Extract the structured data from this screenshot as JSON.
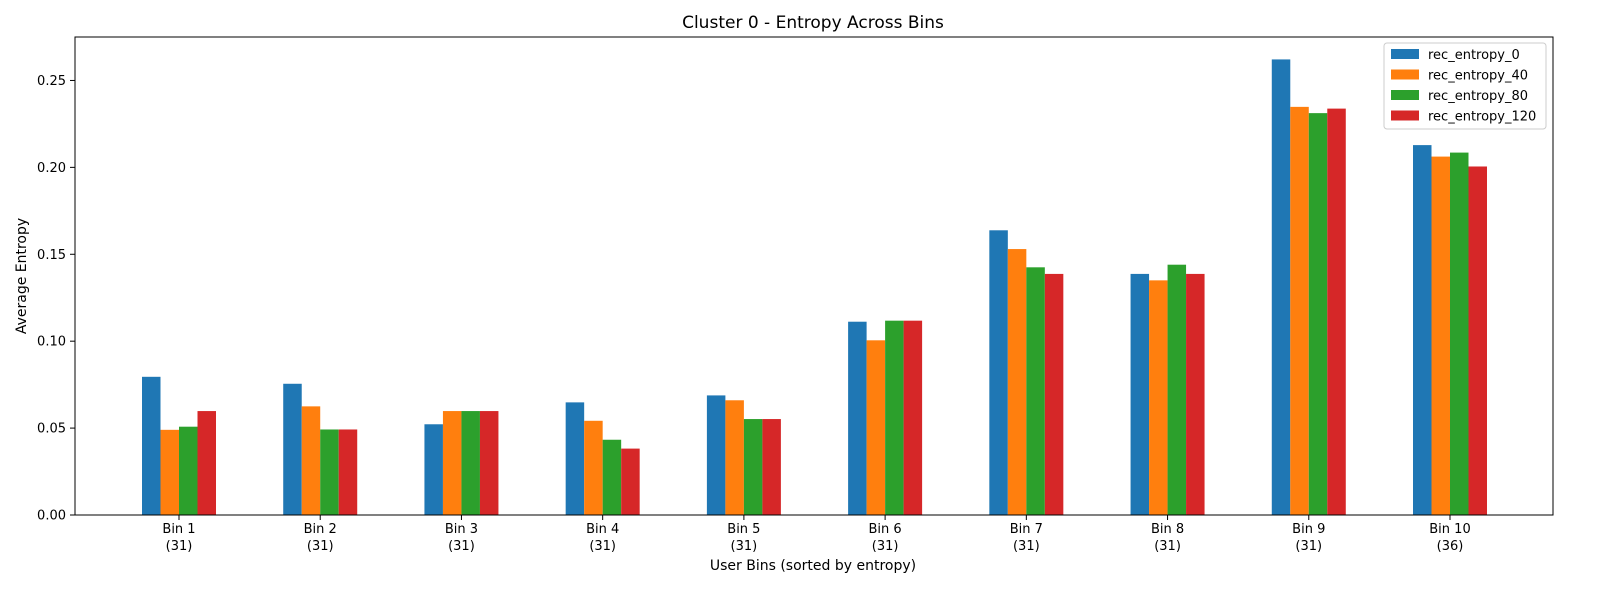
{
  "chart_data": {
    "type": "bar",
    "title": "Cluster 0 - Entropy Across Bins",
    "xlabel": "User Bins (sorted by entropy)",
    "ylabel": "Average Entropy",
    "ylim": [
      0,
      0.275
    ],
    "yticks": [
      "0.00",
      "0.05",
      "0.10",
      "0.15",
      "0.20",
      "0.25"
    ],
    "categories": [
      {
        "name": "Bin 1",
        "count": "(31)"
      },
      {
        "name": "Bin 2",
        "count": "(31)"
      },
      {
        "name": "Bin 3",
        "count": "(31)"
      },
      {
        "name": "Bin 4",
        "count": "(31)"
      },
      {
        "name": "Bin 5",
        "count": "(31)"
      },
      {
        "name": "Bin 6",
        "count": "(31)"
      },
      {
        "name": "Bin 7",
        "count": "(31)"
      },
      {
        "name": "Bin 8",
        "count": "(31)"
      },
      {
        "name": "Bin 9",
        "count": "(31)"
      },
      {
        "name": "Bin 10",
        "count": "(36)"
      }
    ],
    "series": [
      {
        "name": "rec_entropy_0",
        "color": "#1f77b4",
        "values": [
          0.0795,
          0.0755,
          0.0522,
          0.0648,
          0.0688,
          0.1112,
          0.1638,
          0.1387,
          0.2621,
          0.2128
        ]
      },
      {
        "name": "rec_entropy_40",
        "color": "#ff7f0e",
        "values": [
          0.049,
          0.0625,
          0.0598,
          0.0542,
          0.066,
          0.1005,
          0.153,
          0.135,
          0.2348,
          0.2062
        ]
      },
      {
        "name": "rec_entropy_80",
        "color": "#2ca02c",
        "values": [
          0.0508,
          0.0492,
          0.0598,
          0.0433,
          0.0552,
          0.1118,
          0.1425,
          0.144,
          0.2312,
          0.2085
        ]
      },
      {
        "name": "rec_entropy_120",
        "color": "#d62728",
        "values": [
          0.0598,
          0.0492,
          0.0598,
          0.0382,
          0.0552,
          0.1118,
          0.1387,
          0.1387,
          0.2338,
          0.2005
        ]
      }
    ],
    "legend": "top-right",
    "grid": false
  }
}
